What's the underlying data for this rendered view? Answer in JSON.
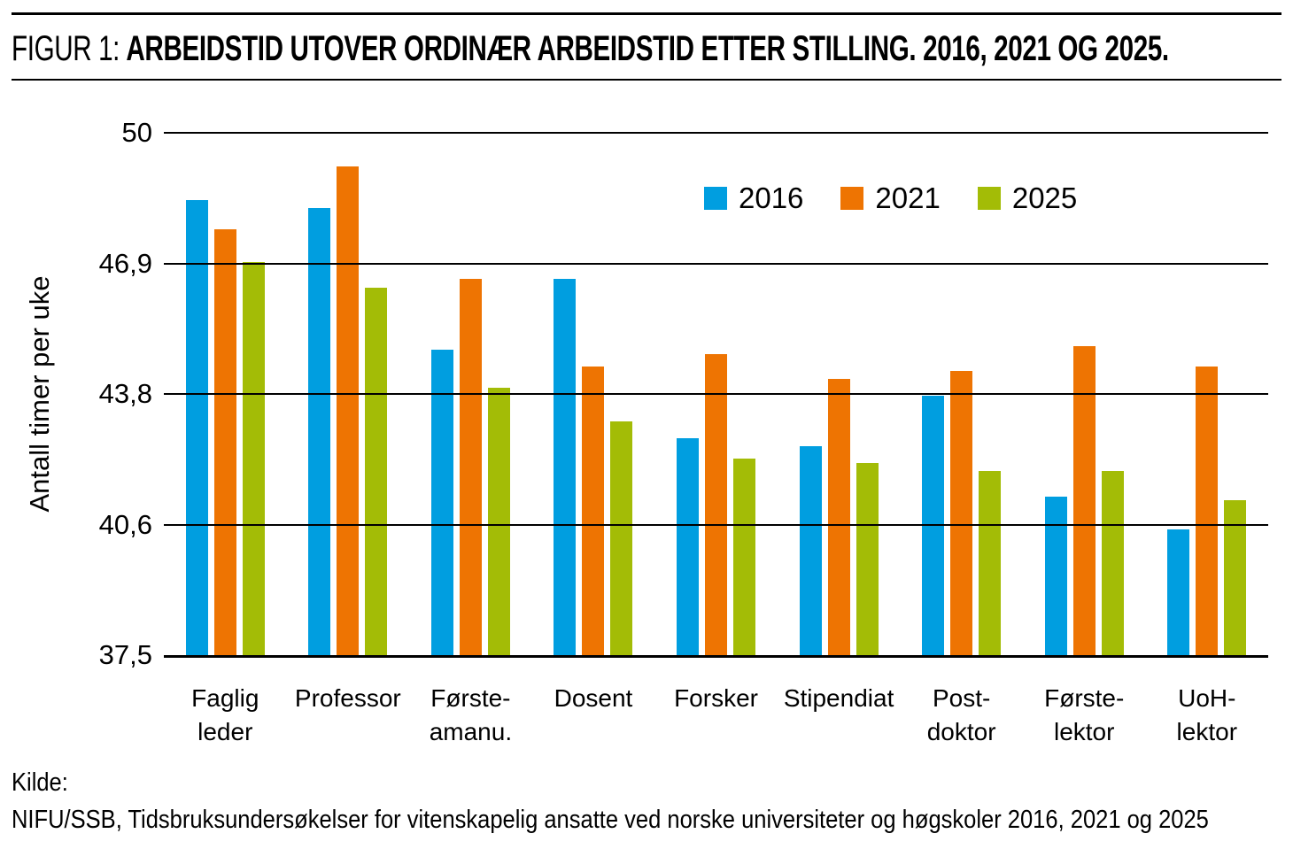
{
  "figure": {
    "label": "FIGUR 1:",
    "title": "ARBEIDSTID UTOVER ORDINÆR ARBEIDSTID ETTER STILLING. 2016, 2021 OG 2025."
  },
  "chart_data": {
    "type": "bar",
    "title": "Arbeidstid utover ordinær arbeidstid etter stilling. 2016, 2021 og 2025.",
    "xlabel": "",
    "ylabel": "Antall timer per uke",
    "ylim": [
      37.5,
      50
    ],
    "ytick_labels": [
      "50",
      "46,9",
      "43,8",
      "40,6",
      "37,5"
    ],
    "grid": true,
    "legend_position": "top-right-inside",
    "categories": [
      {
        "id": "faglig-leder",
        "lines": [
          "Faglig",
          "leder"
        ]
      },
      {
        "id": "professor",
        "lines": [
          "Professor"
        ]
      },
      {
        "id": "forsteamanu",
        "lines": [
          "Første-",
          "amanu."
        ]
      },
      {
        "id": "dosent",
        "lines": [
          "Dosent"
        ]
      },
      {
        "id": "forsker",
        "lines": [
          "Forsker"
        ]
      },
      {
        "id": "stipendiat",
        "lines": [
          "Stipendiat"
        ]
      },
      {
        "id": "postdoktor",
        "lines": [
          "Post-",
          "doktor"
        ]
      },
      {
        "id": "forstelektor",
        "lines": [
          "Første-",
          "lektor"
        ]
      },
      {
        "id": "uoh-lektor",
        "lines": [
          "UoH-",
          "lektor"
        ]
      }
    ],
    "series": [
      {
        "name": "2016",
        "color": "#009EE0",
        "values": [
          48.4,
          48.2,
          44.8,
          46.5,
          42.7,
          42.5,
          43.7,
          41.3,
          40.5
        ]
      },
      {
        "name": "2021",
        "color": "#EE7402",
        "values": [
          47.7,
          49.2,
          46.5,
          44.4,
          44.7,
          44.1,
          44.3,
          44.9,
          44.4
        ]
      },
      {
        "name": "2025",
        "color": "#A3BC06",
        "values": [
          46.9,
          46.3,
          43.9,
          43.1,
          42.2,
          42.1,
          41.9,
          41.9,
          41.2
        ]
      }
    ]
  },
  "source": {
    "label": "Kilde:",
    "text": "NIFU/SSB, Tidsbruksundersøkelser for vitenskapelig ansatte ved norske universiteter og høgskoler 2016, 2021 og 2025"
  }
}
